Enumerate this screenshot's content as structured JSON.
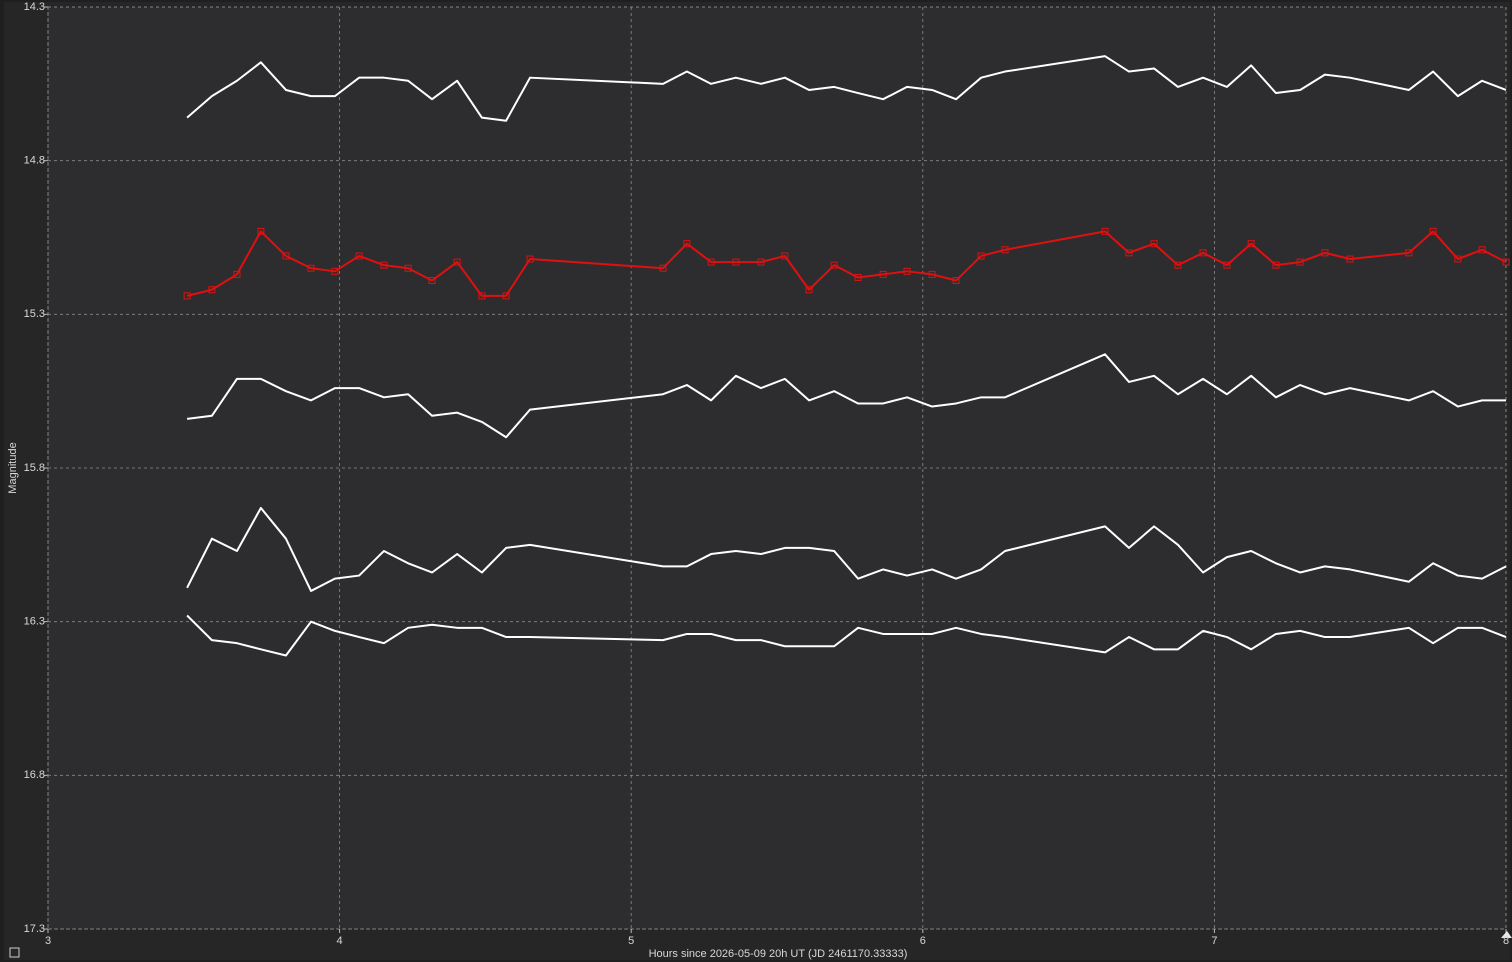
{
  "chart_data": {
    "type": "line",
    "x_label": "Hours since 2026-05-09 20h UT (JD 2461170.33333)",
    "y_label": "Magnitude",
    "x": [
      3.477,
      3.562,
      3.648,
      3.73,
      3.816,
      3.902,
      3.984,
      4.067,
      4.152,
      4.235,
      4.317,
      4.403,
      4.488,
      4.571,
      4.653,
      5.109,
      5.191,
      5.274,
      5.359,
      5.445,
      5.527,
      5.61,
      5.696,
      5.778,
      5.864,
      5.946,
      6.032,
      6.114,
      6.2,
      6.282,
      6.625,
      6.707,
      6.793,
      6.875,
      6.961,
      7.043,
      7.126,
      7.211,
      7.294,
      7.379,
      7.465,
      7.667,
      7.75,
      7.835,
      7.918,
      8.0
    ],
    "xlim": [
      3,
      8
    ],
    "xticks": [
      3,
      4,
      5,
      6,
      7,
      8
    ],
    "ylim": [
      14.3,
      17.3
    ],
    "yticks": [
      14.3,
      14.8,
      15.3,
      15.8,
      16.3,
      16.8,
      17.3
    ],
    "y_inverted": true,
    "grid": true,
    "series": [
      {
        "color": "#ffffff",
        "values": [
          14.66,
          14.59,
          14.54,
          14.48,
          14.57,
          14.59,
          14.59,
          14.53,
          14.53,
          14.54,
          14.6,
          14.54,
          14.66,
          14.67,
          14.53,
          14.55,
          14.51,
          14.55,
          14.53,
          14.55,
          14.53,
          14.57,
          14.56,
          14.58,
          14.6,
          14.56,
          14.57,
          14.6,
          14.53,
          14.51,
          14.46,
          14.51,
          14.5,
          14.56,
          14.53,
          14.56,
          14.49,
          14.58,
          14.57,
          14.52,
          14.53,
          14.57,
          14.51,
          14.59,
          14.54,
          14.57
        ]
      },
      {
        "color": "#e01010",
        "marker": "square",
        "values": [
          15.24,
          15.22,
          15.17,
          15.03,
          15.11,
          15.15,
          15.16,
          15.11,
          15.14,
          15.15,
          15.19,
          15.13,
          15.24,
          15.24,
          15.12,
          15.15,
          15.07,
          15.13,
          15.13,
          15.13,
          15.11,
          15.22,
          15.14,
          15.18,
          15.17,
          15.16,
          15.17,
          15.19,
          15.11,
          15.09,
          15.03,
          15.1,
          15.07,
          15.14,
          15.1,
          15.14,
          15.07,
          15.14,
          15.13,
          15.1,
          15.12,
          15.1,
          15.03,
          15.12,
          15.09,
          15.13
        ]
      },
      {
        "color": "#ffffff",
        "values": [
          15.64,
          15.63,
          15.51,
          15.51,
          15.55,
          15.58,
          15.54,
          15.54,
          15.57,
          15.56,
          15.63,
          15.62,
          15.65,
          15.7,
          15.61,
          15.56,
          15.53,
          15.58,
          15.5,
          15.54,
          15.51,
          15.58,
          15.55,
          15.59,
          15.59,
          15.57,
          15.6,
          15.59,
          15.57,
          15.57,
          15.43,
          15.52,
          15.5,
          15.56,
          15.51,
          15.56,
          15.5,
          15.57,
          15.53,
          15.56,
          15.54,
          15.58,
          15.55,
          15.6,
          15.58,
          15.58
        ]
      },
      {
        "color": "#ffffff",
        "values": [
          16.19,
          16.03,
          16.07,
          15.93,
          16.03,
          16.2,
          16.16,
          16.15,
          16.07,
          16.11,
          16.14,
          16.08,
          16.14,
          16.06,
          16.05,
          16.12,
          16.12,
          16.08,
          16.07,
          16.08,
          16.06,
          16.06,
          16.07,
          16.16,
          16.13,
          16.15,
          16.13,
          16.16,
          16.13,
          16.07,
          15.99,
          16.06,
          15.99,
          16.05,
          16.14,
          16.09,
          16.07,
          16.11,
          16.14,
          16.12,
          16.13,
          16.17,
          16.11,
          16.15,
          16.16,
          16.12
        ]
      },
      {
        "color": "#ffffff",
        "values": [
          16.28,
          16.36,
          16.37,
          16.39,
          16.41,
          16.3,
          16.33,
          16.35,
          16.37,
          16.32,
          16.31,
          16.32,
          16.32,
          16.35,
          16.35,
          16.36,
          16.34,
          16.34,
          16.36,
          16.36,
          16.38,
          16.38,
          16.38,
          16.32,
          16.34,
          16.34,
          16.34,
          16.32,
          16.34,
          16.35,
          16.4,
          16.35,
          16.39,
          16.39,
          16.33,
          16.35,
          16.39,
          16.34,
          16.33,
          16.35,
          16.35,
          16.32,
          16.37,
          16.32,
          16.32,
          16.35
        ]
      }
    ]
  }
}
